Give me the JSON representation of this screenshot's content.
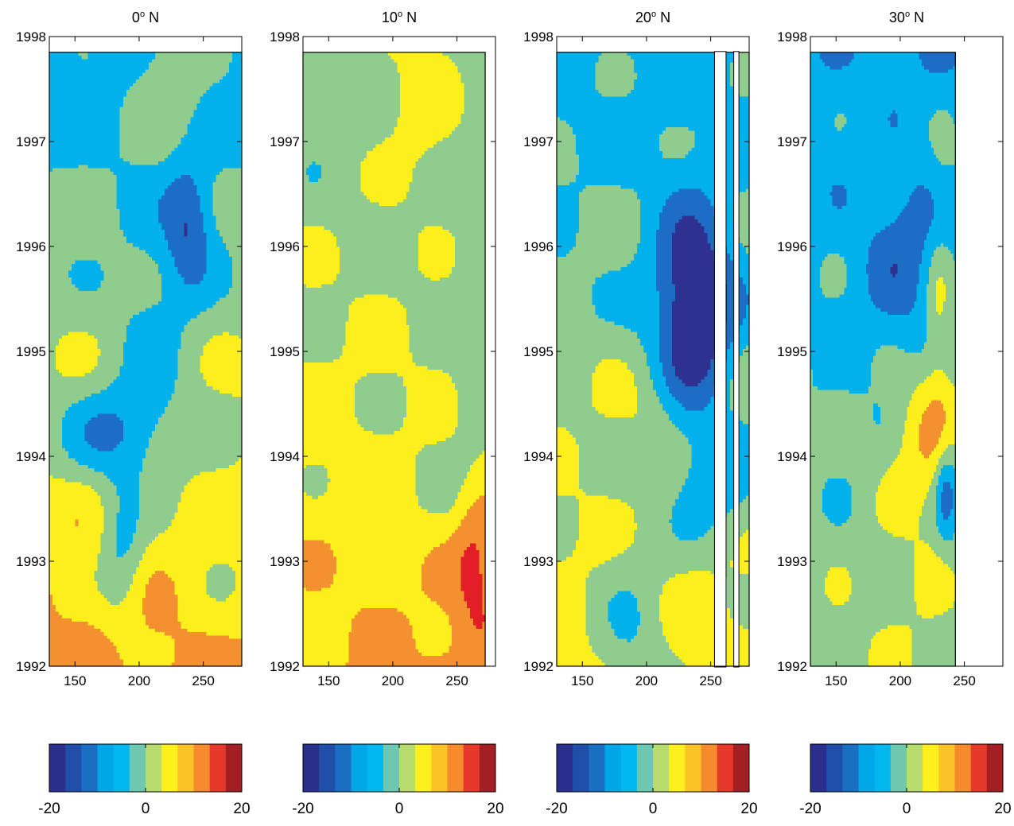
{
  "chart_data": {
    "type": "heatmap",
    "description_units": "filled-contour Hovmoller panels: x = longitude, y = year",
    "panels": [
      {
        "title_value": "0",
        "title_sup": "o",
        "title_suffix": " N",
        "xticks": [
          150,
          200,
          250
        ],
        "xlim": [
          130,
          280
        ],
        "ylim": [
          1992,
          1998
        ],
        "yticks": [
          1992,
          1993,
          1994,
          1995,
          1996,
          1997,
          1998
        ],
        "data_xrange": [
          130,
          280
        ],
        "data_yrange": [
          1992,
          1997.85
        ],
        "mask_columns": []
      },
      {
        "title_value": "10",
        "title_sup": "o",
        "title_suffix": " N",
        "xticks": [
          150,
          200,
          250
        ],
        "xlim": [
          130,
          280
        ],
        "ylim": [
          1992,
          1998
        ],
        "yticks": [
          1992,
          1993,
          1994,
          1995,
          1996,
          1997,
          1998
        ],
        "data_xrange": [
          130,
          272
        ],
        "data_yrange": [
          1992,
          1997.85
        ],
        "mask_columns": []
      },
      {
        "title_value": "20",
        "title_sup": "o",
        "title_suffix": " N",
        "xticks": [
          150,
          200,
          250
        ],
        "xlim": [
          130,
          280
        ],
        "ylim": [
          1992,
          1998
        ],
        "yticks": [
          1992,
          1993,
          1994,
          1995,
          1996,
          1997,
          1998
        ],
        "data_xrange": [
          130,
          280
        ],
        "data_yrange": [
          1992,
          1997.85
        ],
        "mask_columns": [
          [
            253,
            262
          ],
          [
            268,
            272
          ]
        ]
      },
      {
        "title_value": "30",
        "title_sup": "o",
        "title_suffix": " N",
        "xticks": [
          150,
          200,
          250
        ],
        "xlim": [
          130,
          280
        ],
        "ylim": [
          1992,
          1998
        ],
        "yticks": [
          1992,
          1993,
          1994,
          1995,
          1996,
          1997,
          1998
        ],
        "data_xrange": [
          130,
          243
        ],
        "data_yrange": [
          1992,
          1997.85
        ],
        "mask_columns": []
      }
    ],
    "colorbar": {
      "range": [
        -20,
        20
      ],
      "ticks": [
        -20,
        0,
        20
      ],
      "levels": [
        -20,
        -15,
        -10,
        -5,
        0,
        5,
        10,
        15,
        20
      ],
      "level_colors": [
        "#2e318f",
        "#1e6dc4",
        "#00b1ec",
        "#91cc8f",
        "#fcef1c",
        "#f3902f",
        "#e21e26",
        "#8f1f1e"
      ],
      "gradient_stops": [
        "#2a2f8e",
        "#1f4fa8",
        "#1b6fc2",
        "#00a7e6",
        "#00b8ee",
        "#6fc7b0",
        "#b9dc6f",
        "#fdf01c",
        "#fbc326",
        "#f68b2d",
        "#e6382a",
        "#a31f23"
      ]
    }
  }
}
